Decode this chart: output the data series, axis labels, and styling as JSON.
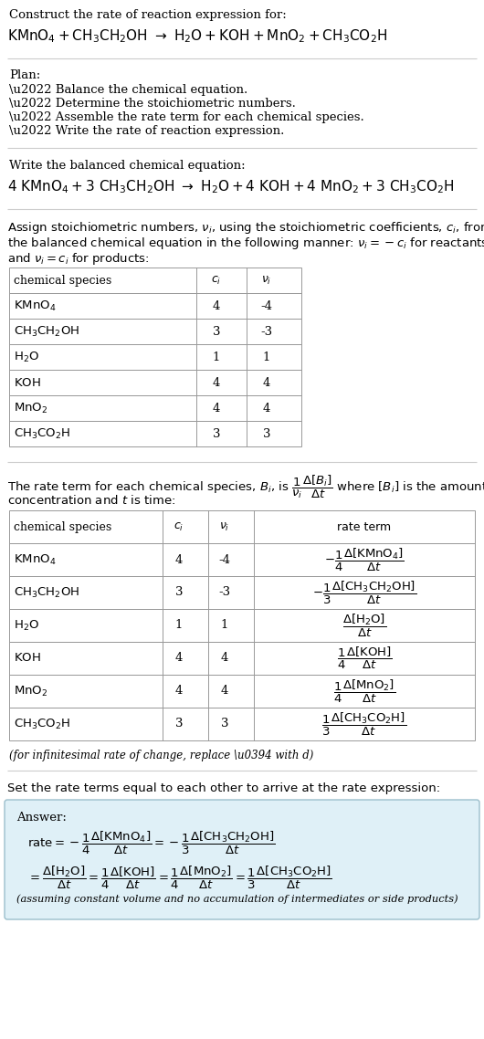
{
  "bg_color": "#ffffff",
  "text_color": "#000000",
  "font_family": "DejaVu Serif",
  "sections": {
    "title_line1": "Construct the rate of reaction expression for:",
    "eq_unbalanced": "$\\mathrm{KMnO_4 + CH_3CH_2OH \\ \\rightarrow \\ H_2O + KOH + MnO_2 + CH_3CO_2H}$",
    "plan_title": "Plan:",
    "plan_items": [
      "\\u2022 Balance the chemical equation.",
      "\\u2022 Determine the stoichiometric numbers.",
      "\\u2022 Assemble the rate term for each chemical species.",
      "\\u2022 Write the rate of reaction expression."
    ],
    "balanced_title": "Write the balanced chemical equation:",
    "eq_balanced": "$\\mathrm{4\\ KMnO_4 + 3\\ CH_3CH_2OH \\ \\rightarrow \\ H_2O + 4\\ KOH + 4\\ MnO_2 + 3\\ CH_3CO_2H}$",
    "assign_line1": "Assign stoichiometric numbers, $\\nu_i$, using the stoichiometric coefficients, $c_i$, from",
    "assign_line2": "the balanced chemical equation in the following manner: $\\nu_i = -c_i$ for reactants",
    "assign_line3": "and $\\nu_i = c_i$ for products:",
    "table1_headers": [
      "chemical species",
      "$c_i$",
      "$\\nu_i$"
    ],
    "table1_species": [
      "$\\mathrm{KMnO_4}$",
      "$\\mathrm{CH_3CH_2OH}$",
      "$\\mathrm{H_2O}$",
      "$\\mathrm{KOH}$",
      "$\\mathrm{MnO_2}$",
      "$\\mathrm{CH_3CO_2H}$"
    ],
    "table1_ci": [
      "4",
      "3",
      "1",
      "4",
      "4",
      "3"
    ],
    "table1_nu": [
      "-4",
      "-3",
      "1",
      "4",
      "4",
      "3"
    ],
    "rate_line1": "The rate term for each chemical species, $B_i$, is $\\dfrac{1}{\\nu_i}\\dfrac{\\Delta[B_i]}{\\Delta t}$ where $[B_i]$ is the amount",
    "rate_line2": "concentration and $t$ is time:",
    "table2_headers": [
      "chemical species",
      "$c_i$",
      "$\\nu_i$",
      "rate term"
    ],
    "table2_rate_terms": [
      "$-\\dfrac{1}{4}\\dfrac{\\Delta[\\mathrm{KMnO_4}]}{\\Delta t}$",
      "$-\\dfrac{1}{3}\\dfrac{\\Delta[\\mathrm{CH_3CH_2OH}]}{\\Delta t}$",
      "$\\dfrac{\\Delta[\\mathrm{H_2O}]}{\\Delta t}$",
      "$\\dfrac{1}{4}\\dfrac{\\Delta[\\mathrm{KOH}]}{\\Delta t}$",
      "$\\dfrac{1}{4}\\dfrac{\\Delta[\\mathrm{MnO_2}]}{\\Delta t}$",
      "$\\dfrac{1}{3}\\dfrac{\\Delta[\\mathrm{CH_3CO_2H}]}{\\Delta t}$"
    ],
    "infinitesimal_note": "(for infinitesimal rate of change, replace \\u0394 with d)",
    "set_rate_text": "Set the rate terms equal to each other to arrive at the rate expression:",
    "answer_label": "Answer:",
    "rate_expr1": "$\\mathrm{rate} = -\\dfrac{1}{4}\\dfrac{\\Delta[\\mathrm{KMnO_4}]}{\\Delta t} = -\\dfrac{1}{3}\\dfrac{\\Delta[\\mathrm{CH_3CH_2OH}]}{\\Delta t}$",
    "rate_expr2": "$= \\dfrac{\\Delta[\\mathrm{H_2O}]}{\\Delta t} = \\dfrac{1}{4}\\dfrac{\\Delta[\\mathrm{KOH}]}{\\Delta t} = \\dfrac{1}{4}\\dfrac{\\Delta[\\mathrm{MnO_2}]}{\\Delta t} = \\dfrac{1}{3}\\dfrac{\\Delta[\\mathrm{CH_3CO_2H}]}{\\Delta t}$",
    "answer_note": "(assuming constant volume and no accumulation of intermediates or side products)",
    "answer_bg": "#dff0f7",
    "answer_border": "#9bbfcc",
    "hline_color": "#cccccc",
    "table_border_color": "#999999"
  }
}
